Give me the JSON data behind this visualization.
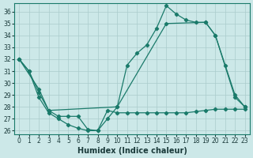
{
  "xlabel": "Humidex (Indice chaleur)",
  "bg_color": "#cce8e8",
  "grid_color": "#aacccc",
  "line_color": "#1a7a6a",
  "xlim": [
    -0.5,
    23.5
  ],
  "ylim": [
    25.7,
    36.7
  ],
  "xticks": [
    0,
    1,
    2,
    3,
    4,
    5,
    6,
    7,
    8,
    9,
    10,
    11,
    12,
    13,
    14,
    15,
    16,
    17,
    18,
    19,
    20,
    21,
    22,
    23
  ],
  "yticks": [
    26,
    27,
    28,
    29,
    30,
    31,
    32,
    33,
    34,
    35,
    36
  ],
  "line1_x": [
    0,
    1,
    2,
    3,
    4,
    5,
    6,
    7,
    8,
    9,
    10,
    11,
    12,
    13,
    14,
    15,
    16,
    17,
    18,
    19,
    20,
    21,
    22,
    23
  ],
  "line1_y": [
    32,
    31,
    28.8,
    27.5,
    27.0,
    26.5,
    26.2,
    26.0,
    26.0,
    27.0,
    28.0,
    31.5,
    32.5,
    33.2,
    34.6,
    36.5,
    35.8,
    35.3,
    35.1,
    35.1,
    34.0,
    31.5,
    29.0,
    28.0
  ],
  "line2_x": [
    0,
    2,
    3,
    10,
    15,
    19,
    20,
    22,
    23
  ],
  "line2_y": [
    32,
    29.5,
    27.7,
    28.0,
    35.0,
    35.1,
    34.0,
    28.8,
    28.0
  ],
  "line3_x": [
    0,
    1,
    2,
    3,
    4,
    5,
    6,
    7,
    8,
    9,
    10,
    11,
    12,
    13,
    14,
    15,
    16,
    17,
    18,
    19,
    20,
    21,
    22,
    23
  ],
  "line3_y": [
    32,
    31,
    29.2,
    27.7,
    27.2,
    27.2,
    27.2,
    26.1,
    26.0,
    27.7,
    27.5,
    27.5,
    27.5,
    27.5,
    27.5,
    27.5,
    27.5,
    27.5,
    27.6,
    27.7,
    27.8,
    27.8,
    27.8,
    27.8
  ]
}
